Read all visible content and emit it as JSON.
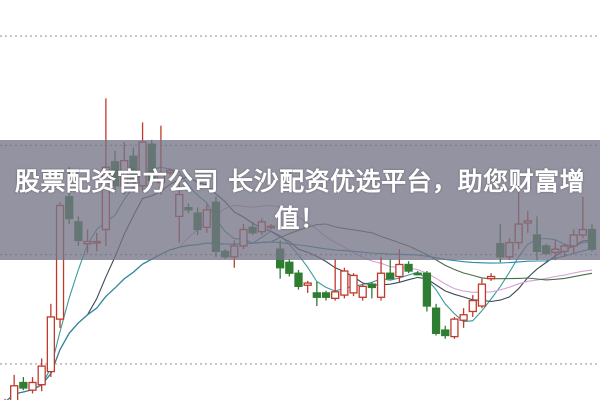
{
  "banner": {
    "line1": "股票配资官方公司 长沙配资优选平台，助您财富增",
    "line2": "值！"
  },
  "colors": {
    "up": "#c0392b",
    "down": "#2e7d32",
    "grid": "#9a9a9a",
    "ma": [
      "#3a9a9a",
      "#3c4a5a",
      "#d8a0d8",
      "#4a6e4a",
      "#2a8aa8"
    ]
  },
  "chart_data": {
    "type": "candlestick",
    "title": "",
    "xlabel": "",
    "ylabel": "",
    "grid": true,
    "ylim": [
      6.7,
      43.3
    ],
    "gridlines": [
      10,
      20,
      30,
      40
    ],
    "moving_averages": [
      5,
      10,
      20,
      30,
      60
    ],
    "candles": [
      [
        5.5,
        6.8,
        5.3,
        6.5
      ],
      [
        5.0,
        9.0,
        4.1,
        8.0
      ],
      [
        8.3,
        8.8,
        7.6,
        7.8
      ],
      [
        7.6,
        8.8,
        7.3,
        8.3
      ],
      [
        8.1,
        10.5,
        7.5,
        9.8
      ],
      [
        9.3,
        15.5,
        8.8,
        14.3
      ],
      [
        14.1,
        24.8,
        13.3,
        24.5
      ],
      [
        25.3,
        28.0,
        22.8,
        23.3
      ],
      [
        23.0,
        23.5,
        20.8,
        21.3
      ],
      [
        21.0,
        22.3,
        20.1,
        21.2
      ],
      [
        21.1,
        22.0,
        20.3,
        21.2
      ],
      [
        22.3,
        34.3,
        20.8,
        28.0
      ],
      [
        28.5,
        29.5,
        25.8,
        26.3
      ],
      [
        26.3,
        30.3,
        25.5,
        28.6
      ],
      [
        29.0,
        29.8,
        26.5,
        26.8
      ],
      [
        26.3,
        32.1,
        25.8,
        30.3
      ],
      [
        30.1,
        30.5,
        26.5,
        26.8
      ],
      [
        26.6,
        31.8,
        25.5,
        27.5
      ],
      [
        27.5,
        27.9,
        27.3,
        27.7
      ],
      [
        23.5,
        27.3,
        21.1,
        25.5
      ],
      [
        24.3,
        24.7,
        23.8,
        24.1
      ],
      [
        23.8,
        24.3,
        21.8,
        22.3
      ],
      [
        22.5,
        24.6,
        22.0,
        24.1
      ],
      [
        24.8,
        25.3,
        19.8,
        20.3
      ],
      [
        20.3,
        20.5,
        19.6,
        19.8
      ],
      [
        19.8,
        21.3,
        18.8,
        20.8
      ],
      [
        20.8,
        22.8,
        20.5,
        22.3
      ],
      [
        22.5,
        23.0,
        21.8,
        22.0
      ],
      [
        22.1,
        23.3,
        21.8,
        23.0
      ],
      [
        22.5,
        22.8,
        22.3,
        22.6
      ],
      [
        20.5,
        21.3,
        17.8,
        18.8
      ],
      [
        19.3,
        19.6,
        18.0,
        18.3
      ],
      [
        18.3,
        18.6,
        16.8,
        17.1
      ],
      [
        17.2,
        17.6,
        16.5,
        17.4
      ],
      [
        16.5,
        17.5,
        15.3,
        16.1
      ],
      [
        16.5,
        16.7,
        15.8,
        16.1
      ],
      [
        16.0,
        19.6,
        15.8,
        16.6
      ],
      [
        16.3,
        18.8,
        16.0,
        18.5
      ],
      [
        16.5,
        18.3,
        16.2,
        18.1
      ],
      [
        16.1,
        17.3,
        15.8,
        17.1
      ],
      [
        17.3,
        17.5,
        16.0,
        17.0
      ],
      [
        16.1,
        19.8,
        15.8,
        18.3
      ],
      [
        18.3,
        19.6,
        17.8,
        17.8
      ],
      [
        18.0,
        20.5,
        17.5,
        19.1
      ],
      [
        19.1,
        19.4,
        18.3,
        18.5
      ],
      [
        18.3,
        18.5,
        18.1,
        18.2
      ],
      [
        18.3,
        18.5,
        14.8,
        15.3
      ],
      [
        15.1,
        15.5,
        12.6,
        12.8
      ],
      [
        13.1,
        13.5,
        12.3,
        12.6
      ],
      [
        12.5,
        14.3,
        12.3,
        14.1
      ],
      [
        14.0,
        15.1,
        13.3,
        14.5
      ],
      [
        14.8,
        16.3,
        14.3,
        15.8
      ],
      [
        15.3,
        17.8,
        15.1,
        17.3
      ],
      [
        17.8,
        18.3,
        17.6,
        18.0
      ],
      [
        21.0,
        22.8,
        19.3,
        19.8
      ],
      [
        19.8,
        21.5,
        19.5,
        21.1
      ],
      [
        21.1,
        27.3,
        20.5,
        22.8
      ],
      [
        22.9,
        24.0,
        22.0,
        23.1
      ],
      [
        21.8,
        23.5,
        19.5,
        20.3
      ],
      [
        20.8,
        21.0,
        20.0,
        20.1
      ],
      [
        20.2,
        21.3,
        19.5,
        20.5
      ],
      [
        20.3,
        21.0,
        19.8,
        20.8
      ],
      [
        20.8,
        22.3,
        20.1,
        21.8
      ],
      [
        21.8,
        25.3,
        21.5,
        22.3
      ],
      [
        22.3,
        22.8,
        20.3,
        20.5
      ]
    ]
  }
}
